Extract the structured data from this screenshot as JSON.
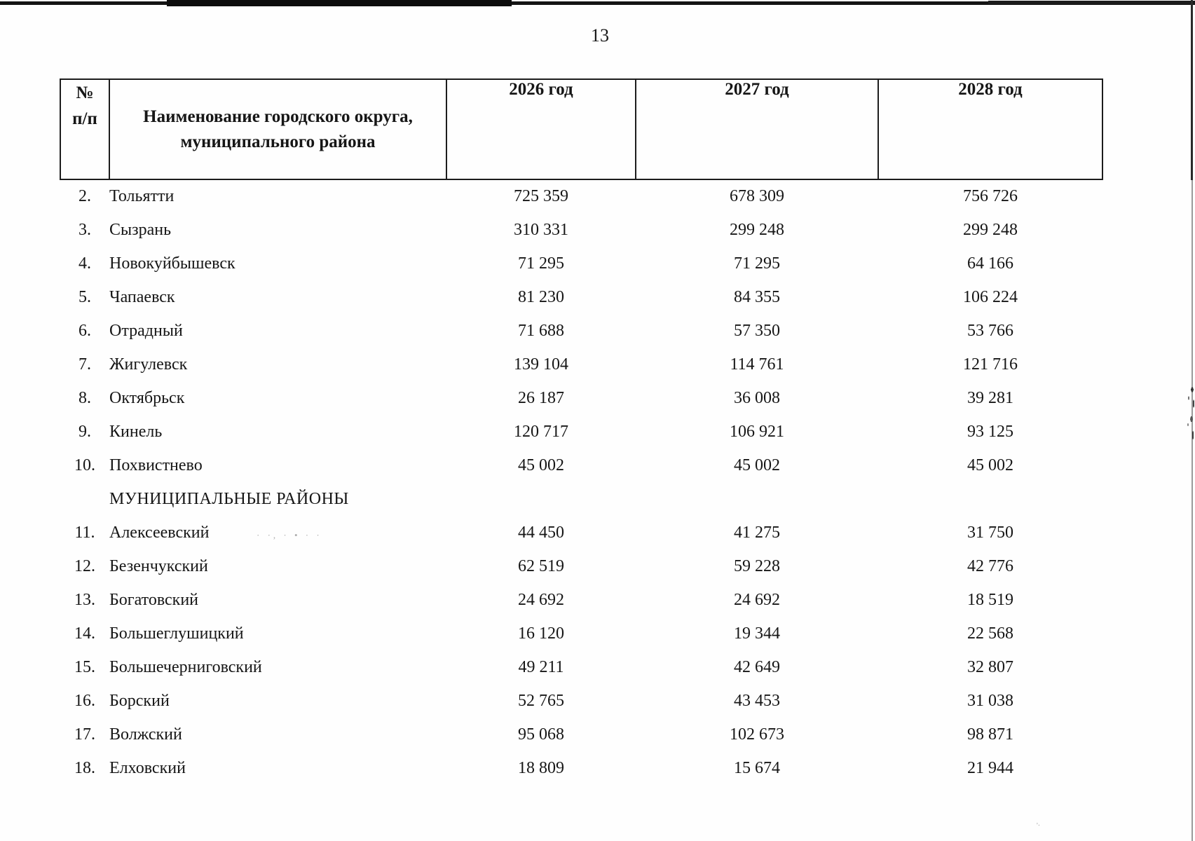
{
  "page": {
    "number": "13"
  },
  "table": {
    "header": {
      "num_top": "№",
      "num_bottom": "п/п",
      "name": "Наименование городского округа, муниципального района",
      "year_2026": "2026 год",
      "year_2027": "2027 год",
      "year_2028": "2028 год"
    },
    "rows": [
      {
        "num": "2.",
        "name": "Тольятти",
        "y2026": "725 359",
        "y2027": "678 309",
        "y2028": "756 726"
      },
      {
        "num": "3.",
        "name": "Сызрань",
        "y2026": "310 331",
        "y2027": "299 248",
        "y2028": "299 248"
      },
      {
        "num": "4.",
        "name": "Новокуйбышевск",
        "y2026": "71 295",
        "y2027": "71 295",
        "y2028": "64 166"
      },
      {
        "num": "5.",
        "name": "Чапаевск",
        "y2026": "81 230",
        "y2027": "84 355",
        "y2028": "106 224"
      },
      {
        "num": "6.",
        "name": "Отрадный",
        "y2026": "71 688",
        "y2027": "57 350",
        "y2028": "53 766"
      },
      {
        "num": "7.",
        "name": "Жигулевск",
        "y2026": "139 104",
        "y2027": "114 761",
        "y2028": "121 716"
      },
      {
        "num": "8.",
        "name": "Октябрьск",
        "y2026": "26 187",
        "y2027": "36 008",
        "y2028": "39 281"
      },
      {
        "num": "9.",
        "name": "Кинель",
        "y2026": "120 717",
        "y2027": "106 921",
        "y2028": "93 125"
      },
      {
        "num": "10.",
        "name": "Похвистнево",
        "y2026": "45 002",
        "y2027": "45 002",
        "y2028": "45 002"
      },
      {
        "section": "МУНИЦИПАЛЬНЫЕ РАЙОНЫ"
      },
      {
        "num": "11.",
        "name": "Алексеевский",
        "y2026": "44 450",
        "y2027": "41 275",
        "y2028": "31 750"
      },
      {
        "num": "12.",
        "name": "Безенчукский",
        "y2026": "62 519",
        "y2027": "59 228",
        "y2028": "42 776"
      },
      {
        "num": "13.",
        "name": "Богатовский",
        "y2026": "24 692",
        "y2027": "24 692",
        "y2028": "18 519"
      },
      {
        "num": "14.",
        "name": "Большеглушицкий",
        "y2026": "16 120",
        "y2027": "19 344",
        "y2028": "22 568"
      },
      {
        "num": "15.",
        "name": "Большечерниговский",
        "y2026": "49 211",
        "y2027": "42 649",
        "y2028": "32 807"
      },
      {
        "num": "16.",
        "name": "Борский",
        "y2026": "52 765",
        "y2027": "43 453",
        "y2028": "31 038"
      },
      {
        "num": "17.",
        "name": "Волжский",
        "y2026": "95 068",
        "y2027": "102 673",
        "y2028": "98 871"
      },
      {
        "num": "18.",
        "name": "Елховский",
        "y2026": "18 809",
        "y2027": "15 674",
        "y2028": "21 944"
      }
    ]
  }
}
